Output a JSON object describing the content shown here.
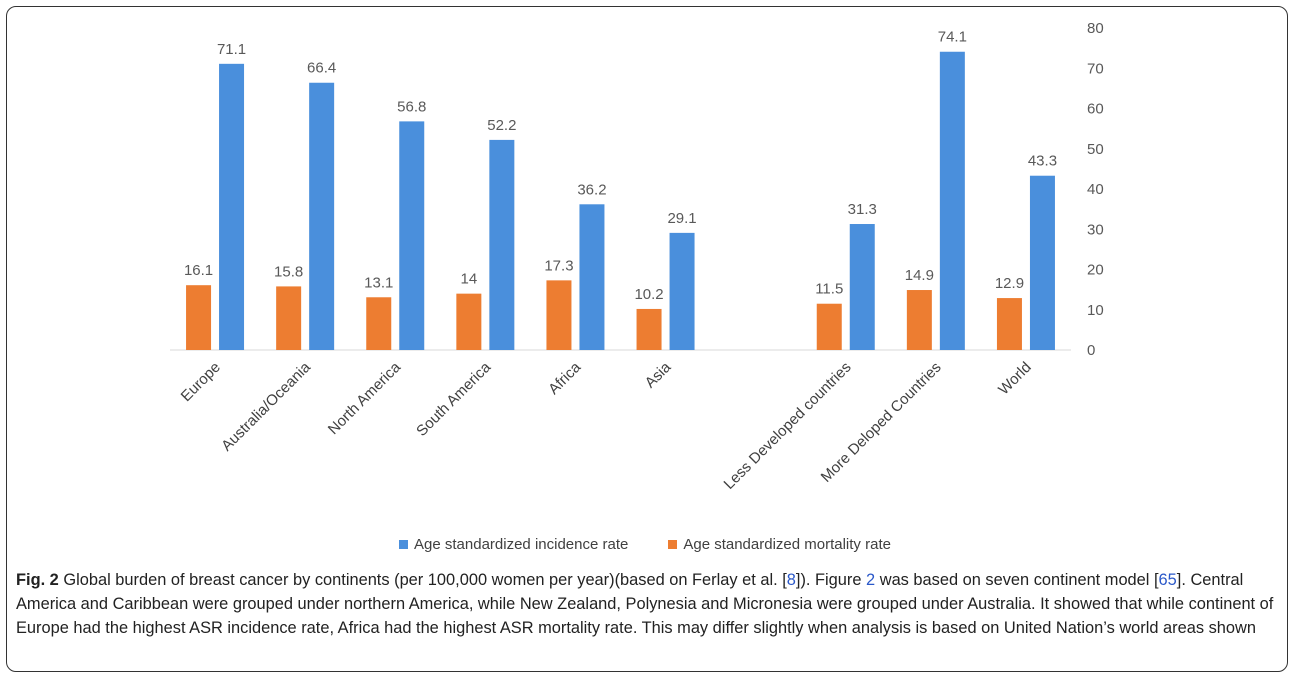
{
  "chart_data": {
    "type": "bar",
    "categories": [
      "Europe",
      "Australia/Oceania",
      "North America",
      "South America",
      "Africa",
      "Asia",
      "",
      "Less Developed countries",
      "More Deloped Countries",
      "World"
    ],
    "series": [
      {
        "name": "Age standardized mortality rate",
        "color": "#ed7d31",
        "values": [
          16.1,
          15.8,
          13.1,
          14,
          17.3,
          10.2,
          null,
          11.5,
          14.9,
          12.9
        ]
      },
      {
        "name": "Age standardized incidence rate",
        "color": "#4a8fdc",
        "values": [
          71.1,
          66.4,
          56.8,
          52.2,
          36.2,
          29.1,
          null,
          31.3,
          74.1,
          43.3
        ]
      }
    ],
    "y_ticks": [
      0,
      10,
      20,
      30,
      40,
      50,
      60,
      70,
      80
    ],
    "ylim": [
      0,
      80
    ],
    "y_axis_side": "right",
    "legend_position": "bottom",
    "grid": false
  },
  "legend": {
    "incidence_label": "Age standardized incidence rate",
    "mortality_label": "Age standardized mortality rate"
  },
  "caption": {
    "fig_label": "Fig. 2",
    "text_1": " Global burden of breast cancer by continents (per 100,000 women per year)(based on Ferlay et al. [",
    "ref_1": "8",
    "text_2": "]). Figure ",
    "ref_2": "2",
    "text_3": " was based on seven continent model [",
    "ref_3": "65",
    "text_4": "]. Central America and Caribbean were grouped under northern America, while New Zealand, Polynesia and Micronesia were grouped under Australia. It showed that while continent of Europe had the highest ASR incidence rate, Africa had the highest ASR mortality rate. This may differ slightly when analysis is based on United Nation’s world areas shown"
  }
}
